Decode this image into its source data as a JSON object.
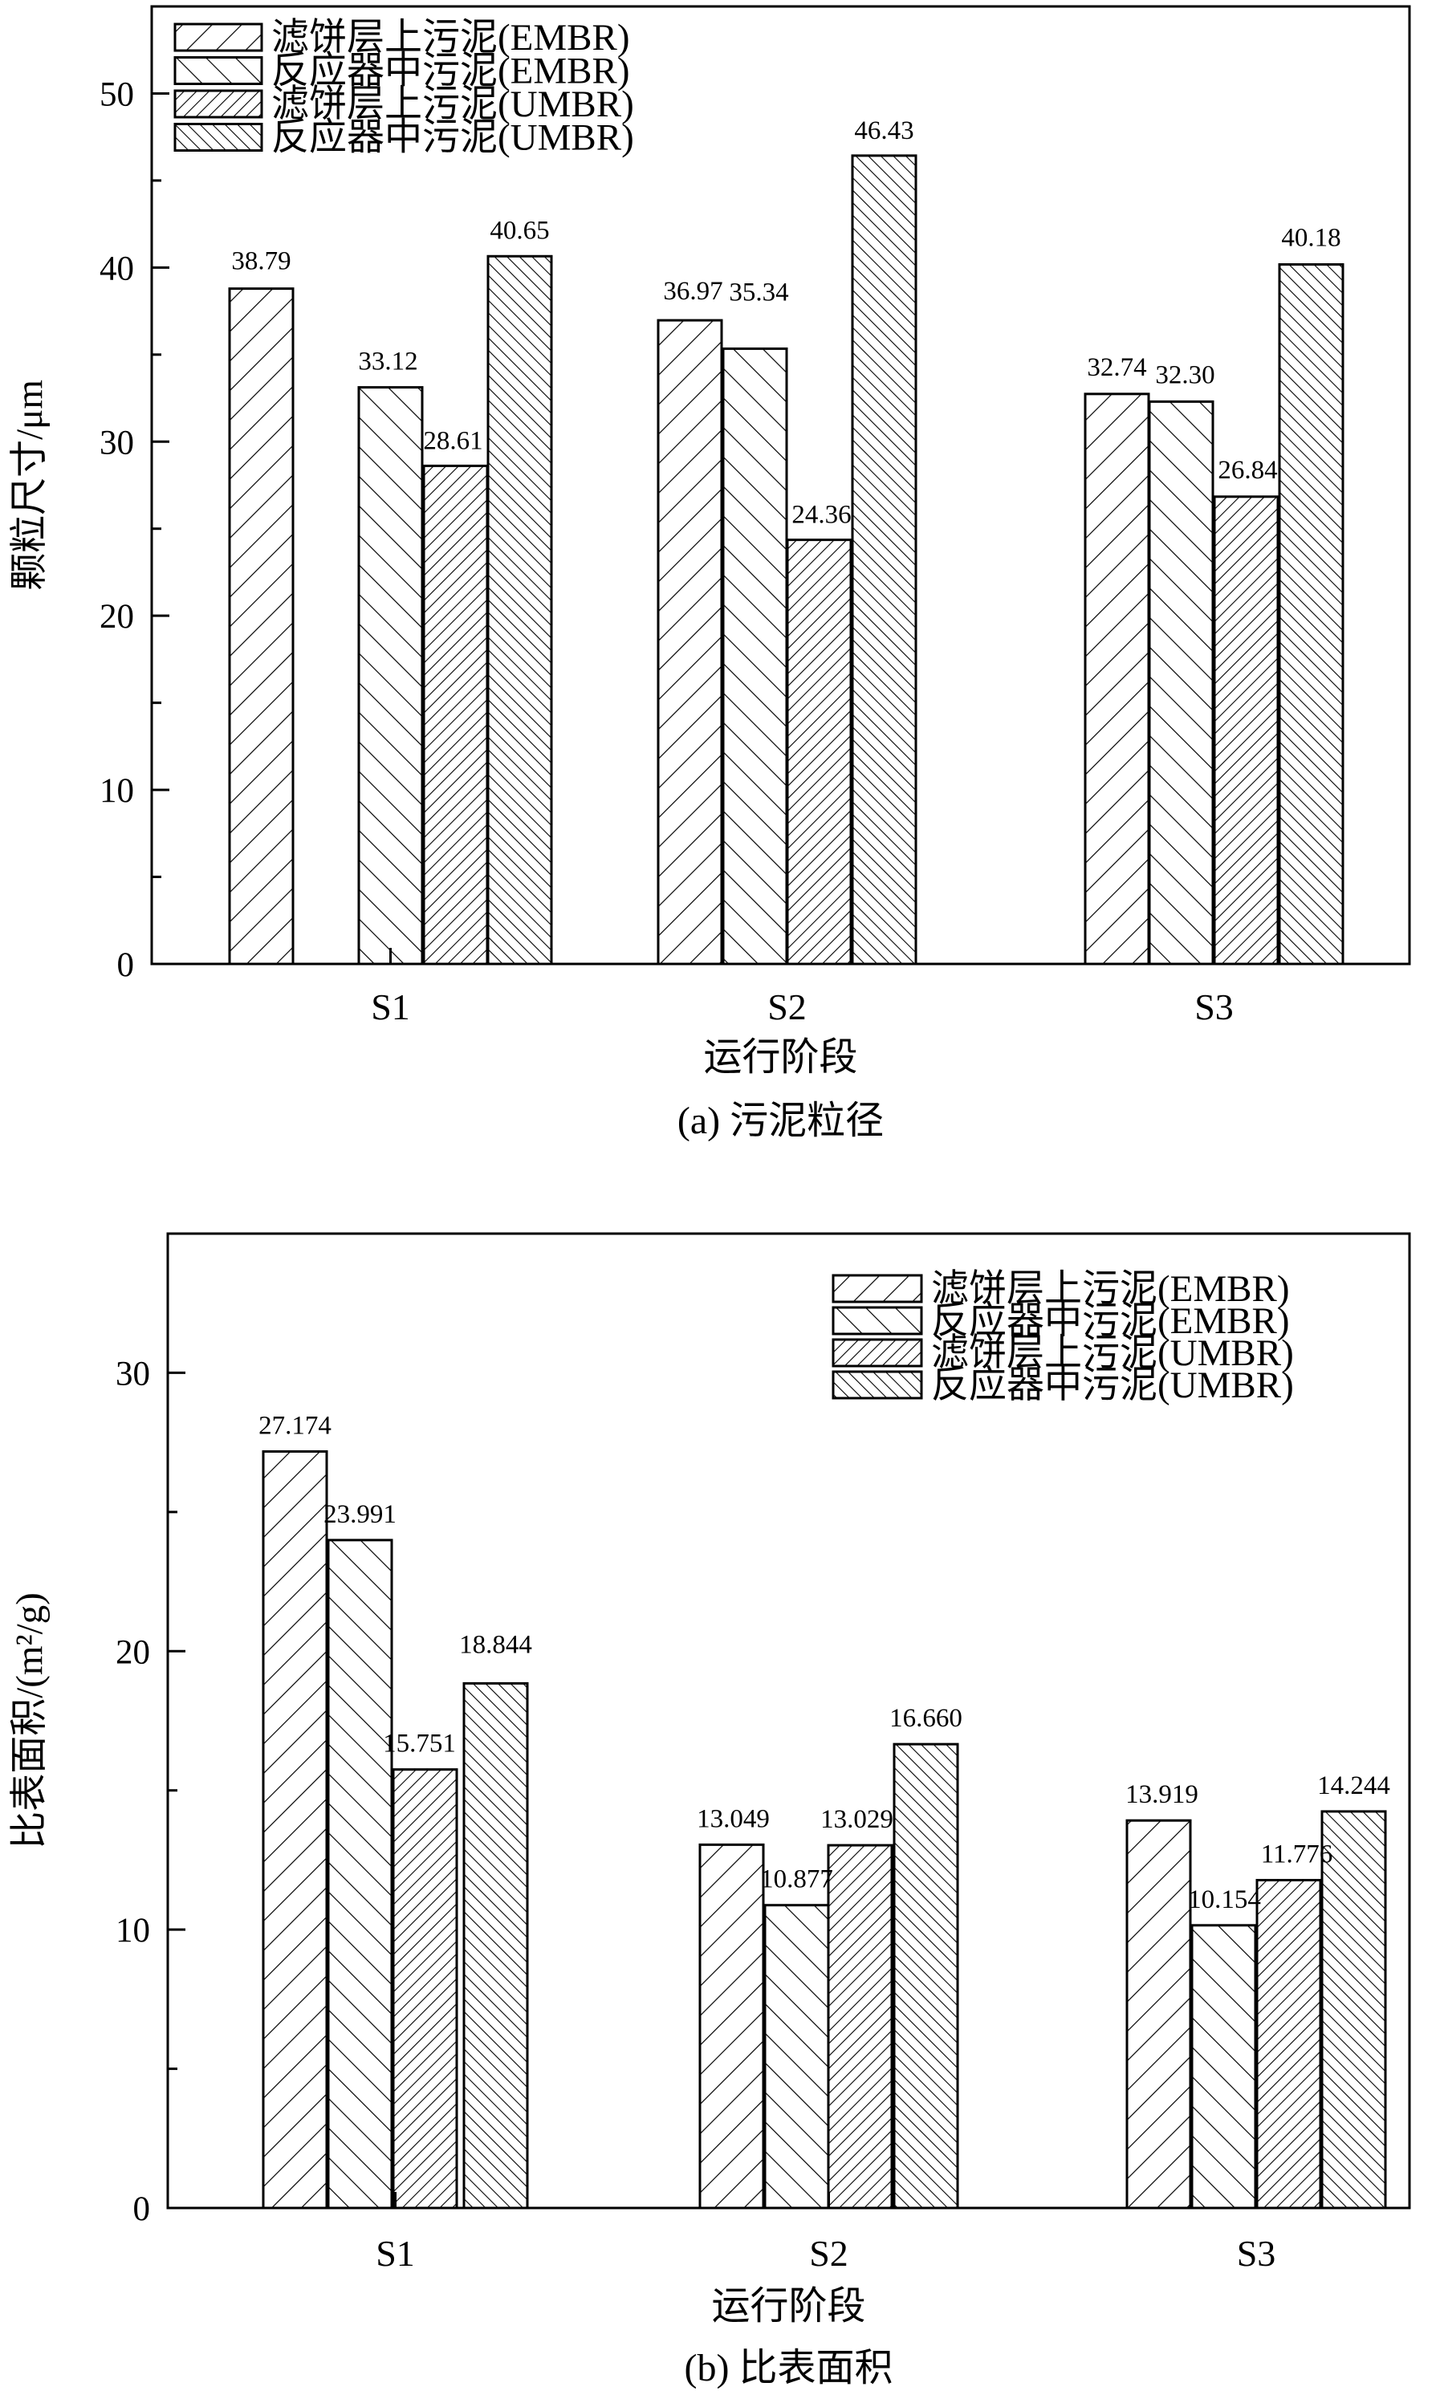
{
  "chart_data": [
    {
      "type": "bar",
      "title": "",
      "caption": "(a) 污泥粒径",
      "xlabel": "运行阶段",
      "ylabel": "颗粒尺寸/μm",
      "ylim": [
        0,
        55
      ],
      "yticks": [
        "0",
        "10",
        "20",
        "30",
        "40",
        "50"
      ],
      "grid": false,
      "legend_position": "top-left",
      "categories": [
        "S1",
        "S2",
        "S3"
      ],
      "series": [
        {
          "name": "滤饼层上污泥(EMBR)",
          "values": [
            38.79,
            36.97,
            32.74
          ],
          "labels": [
            "38.79",
            "36.97",
            "32.74"
          ]
        },
        {
          "name": "反应器中污泥(EMBR)",
          "values": [
            33.12,
            35.34,
            32.3
          ],
          "labels": [
            "33.12",
            "35.34",
            "32.30"
          ]
        },
        {
          "name": "滤饼层上污泥(UMBR)",
          "values": [
            28.61,
            24.36,
            26.84
          ],
          "labels": [
            "28.61",
            "24.36",
            "26.84"
          ]
        },
        {
          "name": "反应器中污泥(UMBR)",
          "values": [
            40.65,
            46.43,
            40.18
          ],
          "labels": [
            "40.65",
            "46.43",
            "40.18"
          ]
        }
      ]
    },
    {
      "type": "bar",
      "title": "",
      "caption": "(b) 比表面积",
      "xlabel": "运行阶段",
      "ylabel": "比表面积/(m²/g)",
      "ylim": [
        0,
        35
      ],
      "yticks": [
        "0",
        "10",
        "20",
        "30"
      ],
      "grid": false,
      "legend_position": "top-right",
      "categories": [
        "S1",
        "S2",
        "S3"
      ],
      "series": [
        {
          "name": "滤饼层上污泥(EMBR)",
          "values": [
            27.174,
            13.049,
            13.919
          ],
          "labels": [
            "27.174",
            "13.049",
            "13.919"
          ]
        },
        {
          "name": "反应器中污泥(EMBR)",
          "values": [
            23.991,
            10.877,
            10.154
          ],
          "labels": [
            "23.991",
            "10.877",
            "10.154"
          ]
        },
        {
          "name": "滤饼层上污泥(UMBR)",
          "values": [
            15.751,
            13.029,
            11.776
          ],
          "labels": [
            "15.751",
            "13.029",
            "11.776"
          ]
        },
        {
          "name": "反应器中污泥(UMBR)",
          "values": [
            18.844,
            16.66,
            14.244
          ],
          "labels": [
            "18.844",
            "16.660",
            "14.244"
          ]
        }
      ]
    }
  ]
}
